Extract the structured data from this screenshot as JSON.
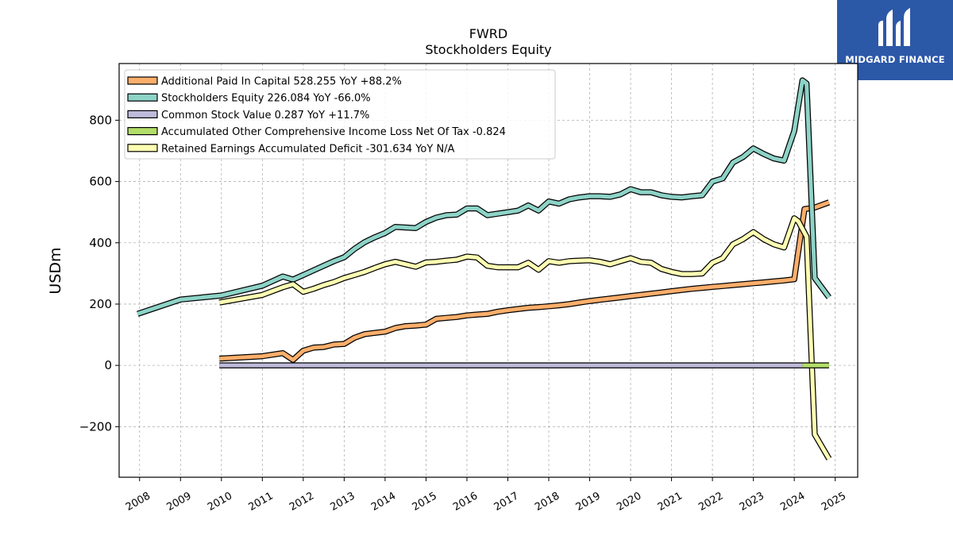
{
  "brand": {
    "name": "MIDGARD FINANCE",
    "color": "#2c58a8"
  },
  "chart_data": {
    "type": "line",
    "title": "FWRD",
    "subtitle": "Stockholders  Equity",
    "ylabel": "USDm",
    "xlabel": "",
    "xlim": [
      2007.5,
      2025.55
    ],
    "ylim": [
      -365,
      985
    ],
    "yticks": [
      -200,
      0,
      200,
      400,
      600,
      800
    ],
    "xticks": [
      2008,
      2009,
      2010,
      2011,
      2012,
      2013,
      2014,
      2015,
      2016,
      2017,
      2018,
      2019,
      2020,
      2021,
      2022,
      2023,
      2024,
      2025
    ],
    "grid": true,
    "legend_position": "top-left",
    "series": [
      {
        "name": "Additional Paid In Capital  528.255 YoY +88.2%",
        "color": "#fdae6b",
        "x": [
          2009.95,
          2011.0,
          2011.5,
          2011.75,
          2012.0,
          2012.25,
          2012.5,
          2012.75,
          2013.0,
          2013.25,
          2013.5,
          2013.75,
          2014.0,
          2014.25,
          2014.5,
          2014.75,
          2015.0,
          2015.25,
          2015.5,
          2015.75,
          2016.0,
          2016.25,
          2016.5,
          2016.75,
          2017.0,
          2017.25,
          2017.5,
          2017.75,
          2018.0,
          2018.25,
          2018.5,
          2018.75,
          2019.0,
          2019.25,
          2019.5,
          2019.75,
          2020.0,
          2020.25,
          2020.5,
          2020.75,
          2021.0,
          2021.25,
          2021.5,
          2021.75,
          2022.0,
          2022.25,
          2022.5,
          2022.75,
          2023.0,
          2023.25,
          2023.5,
          2023.75,
          2024.0,
          2024.25,
          2024.5,
          2024.85
        ],
        "y": [
          22,
          30,
          40,
          18,
          48,
          58,
          60,
          68,
          70,
          90,
          102,
          106,
          110,
          122,
          128,
          130,
          133,
          152,
          155,
          158,
          163,
          166,
          168,
          175,
          180,
          184,
          188,
          190,
          193,
          196,
          200,
          205,
          210,
          214,
          218,
          222,
          226,
          230,
          234,
          238,
          242,
          246,
          250,
          253,
          256,
          259,
          262,
          265,
          268,
          271,
          274,
          277,
          281,
          510,
          515,
          532
        ]
      },
      {
        "name": "Stockholders Equity  226.084 YoY -66.0%",
        "color": "#8dd3c7",
        "x": [
          2007.95,
          2009.0,
          2010.0,
          2011.0,
          2011.25,
          2011.5,
          2011.75,
          2012.0,
          2012.25,
          2012.5,
          2012.75,
          2013.0,
          2013.25,
          2013.5,
          2013.75,
          2014.0,
          2014.25,
          2014.5,
          2014.75,
          2015.0,
          2015.25,
          2015.5,
          2015.75,
          2016.0,
          2016.25,
          2016.5,
          2016.75,
          2017.0,
          2017.25,
          2017.5,
          2017.75,
          2018.0,
          2018.25,
          2018.5,
          2018.75,
          2019.0,
          2019.25,
          2019.5,
          2019.75,
          2020.0,
          2020.25,
          2020.5,
          2020.75,
          2021.0,
          2021.25,
          2021.5,
          2021.75,
          2022.0,
          2022.25,
          2022.5,
          2022.75,
          2023.0,
          2023.25,
          2023.5,
          2023.75,
          2024.0,
          2024.2,
          2024.3,
          2024.5,
          2024.85
        ],
        "y": [
          168,
          215,
          228,
          260,
          275,
          290,
          280,
          295,
          310,
          325,
          340,
          353,
          380,
          402,
          418,
          432,
          452,
          450,
          448,
          468,
          482,
          490,
          492,
          512,
          512,
          490,
          495,
          500,
          505,
          522,
          505,
          535,
          528,
          542,
          548,
          552,
          552,
          550,
          558,
          575,
          565,
          565,
          555,
          550,
          548,
          552,
          555,
          600,
          610,
          662,
          680,
          708,
          690,
          675,
          668,
          765,
          930,
          920,
          285,
          222
        ]
      },
      {
        "name": "Common Stock Value  0.287 YoY +11.7%",
        "color": "#bebada",
        "x": [
          2009.95,
          2024.2
        ],
        "y": [
          0,
          0
        ]
      },
      {
        "name": "Accumulated Other Comprehensive Income Loss Net Of Tax  -0.824",
        "color": "#b3de69",
        "x": [
          2024.2,
          2024.85
        ],
        "y": [
          0,
          0
        ]
      },
      {
        "name": "Retained Earnings Accumulated Deficit  -301.634 YoY N/A",
        "color": "#ffffb3",
        "x": [
          2009.95,
          2011.0,
          2011.5,
          2011.75,
          2012.0,
          2012.25,
          2012.5,
          2012.75,
          2013.0,
          2013.25,
          2013.5,
          2013.75,
          2014.0,
          2014.25,
          2014.5,
          2014.75,
          2015.0,
          2015.25,
          2015.5,
          2015.75,
          2016.0,
          2016.25,
          2016.5,
          2016.75,
          2017.0,
          2017.25,
          2017.5,
          2017.75,
          2018.0,
          2018.25,
          2018.5,
          2018.75,
          2019.0,
          2019.25,
          2019.5,
          2019.75,
          2020.0,
          2020.25,
          2020.5,
          2020.75,
          2021.0,
          2021.25,
          2021.5,
          2021.75,
          2022.0,
          2022.25,
          2022.5,
          2022.75,
          2023.0,
          2023.25,
          2023.5,
          2023.75,
          2024.0,
          2024.1,
          2024.3,
          2024.5,
          2024.85
        ],
        "y": [
          205,
          230,
          255,
          265,
          240,
          250,
          262,
          272,
          285,
          295,
          305,
          318,
          330,
          338,
          330,
          322,
          336,
          338,
          342,
          345,
          355,
          352,
          325,
          320,
          320,
          320,
          335,
          312,
          340,
          335,
          340,
          342,
          343,
          338,
          330,
          340,
          350,
          338,
          335,
          315,
          305,
          298,
          298,
          300,
          335,
          350,
          395,
          412,
          435,
          412,
          395,
          385,
          480,
          470,
          420,
          -225,
          -305
        ]
      }
    ]
  }
}
